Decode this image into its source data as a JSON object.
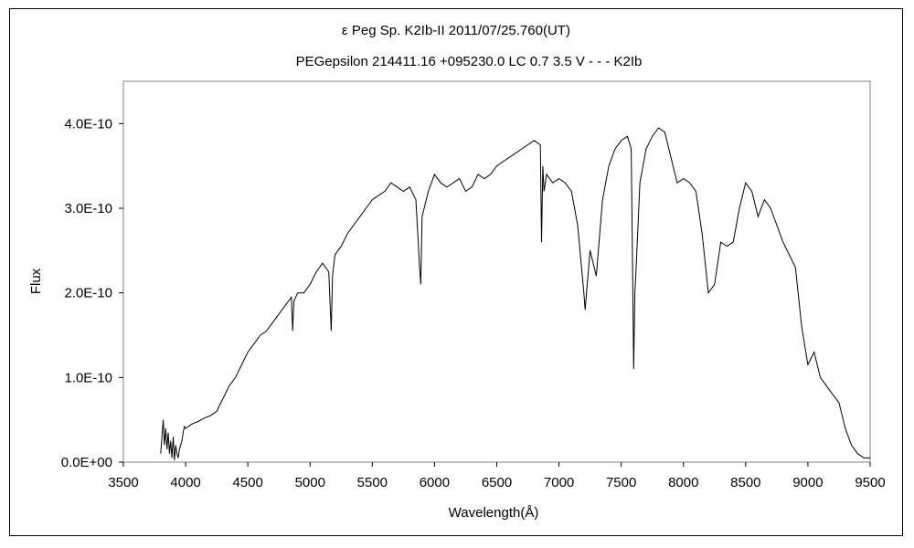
{
  "chart_data": {
    "type": "line",
    "title": "ε Peg    Sp. K2Ib-II    2011/07/25.760(UT)",
    "subtitle": "PEGepsilon 214411.16 +095230.0 LC 0.7 3.5  V - - - K2Ib",
    "xlabel": "Wavelength(Å)",
    "ylabel": "Flux",
    "xlim": [
      3500,
      9500
    ],
    "ylim": [
      0,
      4.5e-10
    ],
    "x_ticks": [
      "3500",
      "4000",
      "4500",
      "5000",
      "5500",
      "6000",
      "6500",
      "7000",
      "7500",
      "8000",
      "8500",
      "9000",
      "9500"
    ],
    "y_ticks": [
      "0.0E+00",
      "1.0E-10",
      "2.0E-10",
      "3.0E-10",
      "4.0E-10"
    ],
    "grid": false,
    "legend": "none",
    "line_color": "#000000",
    "series": [
      {
        "x": [
          3800,
          3810,
          3820,
          3830,
          3840,
          3850,
          3860,
          3870,
          3880,
          3890,
          3900,
          3910,
          3920,
          3930,
          3940,
          3950,
          3960,
          3970,
          3980,
          3990,
          4000,
          4050,
          4100,
          4150,
          4200,
          4250,
          4300,
          4350,
          4400,
          4450,
          4500,
          4550,
          4600,
          4650,
          4700,
          4750,
          4800,
          4850,
          4860,
          4870,
          4900,
          4950,
          5000,
          5050,
          5100,
          5150,
          5170,
          5180,
          5200,
          5250,
          5300,
          5350,
          5400,
          5450,
          5500,
          5550,
          5600,
          5650,
          5700,
          5750,
          5800,
          5850,
          5880,
          5890,
          5900,
          5950,
          6000,
          6050,
          6100,
          6150,
          6200,
          6250,
          6300,
          6350,
          6400,
          6450,
          6500,
          6550,
          6600,
          6650,
          6700,
          6750,
          6800,
          6850,
          6860,
          6870,
          6880,
          6900,
          6950,
          7000,
          7050,
          7100,
          7150,
          7200,
          7210,
          7250,
          7300,
          7350,
          7400,
          7450,
          7500,
          7550,
          7580,
          7590,
          7600,
          7610,
          7620,
          7650,
          7700,
          7750,
          7800,
          7850,
          7900,
          7950,
          8000,
          8050,
          8100,
          8150,
          8200,
          8250,
          8300,
          8350,
          8400,
          8450,
          8500,
          8550,
          8600,
          8650,
          8700,
          8750,
          8800,
          8850,
          8900,
          8950,
          9000,
          9050,
          9100,
          9150,
          9200,
          9250,
          9300,
          9350,
          9400,
          9450,
          9500
        ],
        "y": [
          0.1,
          0.3,
          0.5,
          0.2,
          0.4,
          0.15,
          0.35,
          0.1,
          0.25,
          0.05,
          0.3,
          0.02,
          0.2,
          0.1,
          0.05,
          0.15,
          0.2,
          0.25,
          0.35,
          0.42,
          0.4,
          0.45,
          0.48,
          0.52,
          0.55,
          0.6,
          0.75,
          0.9,
          1.0,
          1.15,
          1.3,
          1.4,
          1.5,
          1.55,
          1.65,
          1.75,
          1.85,
          1.95,
          1.55,
          1.9,
          2.0,
          2.0,
          2.1,
          2.25,
          2.35,
          2.25,
          1.55,
          2.2,
          2.45,
          2.55,
          2.7,
          2.8,
          2.9,
          3.0,
          3.1,
          3.15,
          3.2,
          3.3,
          3.25,
          3.2,
          3.25,
          3.1,
          2.3,
          2.1,
          2.9,
          3.2,
          3.4,
          3.3,
          3.25,
          3.3,
          3.35,
          3.2,
          3.25,
          3.4,
          3.35,
          3.4,
          3.5,
          3.55,
          3.6,
          3.65,
          3.7,
          3.75,
          3.8,
          3.75,
          2.6,
          3.5,
          3.2,
          3.4,
          3.3,
          3.35,
          3.3,
          3.2,
          2.8,
          2.0,
          1.8,
          2.5,
          2.2,
          3.1,
          3.5,
          3.7,
          3.8,
          3.85,
          3.7,
          2.5,
          1.1,
          2.0,
          2.3,
          3.3,
          3.7,
          3.85,
          3.95,
          3.9,
          3.6,
          3.3,
          3.35,
          3.3,
          3.2,
          2.7,
          2.0,
          2.1,
          2.6,
          2.55,
          2.6,
          3.0,
          3.3,
          3.2,
          2.9,
          3.1,
          3.0,
          2.8,
          2.6,
          2.45,
          2.3,
          1.6,
          1.15,
          1.3,
          1.0,
          0.9,
          0.8,
          0.7,
          0.4,
          0.2,
          0.1,
          0.05,
          0.05
        ]
      }
    ]
  }
}
